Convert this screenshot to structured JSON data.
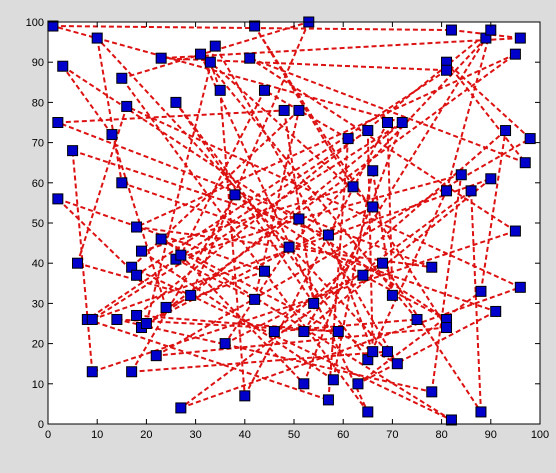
{
  "chart_data": {
    "type": "scatter",
    "title": "",
    "xlabel": "",
    "ylabel": "",
    "xlim": [
      0,
      100
    ],
    "ylim": [
      0,
      100
    ],
    "xticks": [
      "0",
      "10",
      "20",
      "30",
      "40",
      "50",
      "60",
      "70",
      "80",
      "90",
      "100"
    ],
    "yticks": [
      "0",
      "10",
      "20",
      "30",
      "40",
      "50",
      "60",
      "70",
      "80",
      "90",
      "100"
    ],
    "grid": false,
    "colors": {
      "marker_fill": "#0000cc",
      "marker_edge": "#000000",
      "route_line": "#dd1111",
      "figure_background": "#dcdcdc",
      "axes_background": "#ffffff"
    },
    "points": [
      [
        1,
        99
      ],
      [
        10,
        96
      ],
      [
        23,
        91
      ],
      [
        31,
        92
      ],
      [
        33,
        90
      ],
      [
        34,
        94
      ],
      [
        42,
        99
      ],
      [
        53,
        100
      ],
      [
        41,
        91
      ],
      [
        82,
        98
      ],
      [
        89,
        96
      ],
      [
        90,
        98
      ],
      [
        95,
        92
      ],
      [
        96,
        96
      ],
      [
        3,
        89
      ],
      [
        15,
        86
      ],
      [
        35,
        83
      ],
      [
        44,
        83
      ],
      [
        81,
        90
      ],
      [
        81,
        88
      ],
      [
        16,
        79
      ],
      [
        26,
        80
      ],
      [
        48,
        78
      ],
      [
        51,
        78
      ],
      [
        2,
        75
      ],
      [
        13,
        72
      ],
      [
        65,
        73
      ],
      [
        69,
        75
      ],
      [
        72,
        75
      ],
      [
        93,
        73
      ],
      [
        98,
        71
      ],
      [
        5,
        68
      ],
      [
        61,
        71
      ],
      [
        66,
        63
      ],
      [
        84,
        62
      ],
      [
        15,
        60
      ],
      [
        38,
        57
      ],
      [
        62,
        59
      ],
      [
        81,
        58
      ],
      [
        86,
        58
      ],
      [
        2,
        56
      ],
      [
        66,
        54
      ],
      [
        90,
        61
      ],
      [
        97,
        65
      ],
      [
        18,
        49
      ],
      [
        23,
        46
      ],
      [
        57,
        47
      ],
      [
        19,
        43
      ],
      [
        51,
        51
      ],
      [
        49,
        44
      ],
      [
        95,
        48
      ],
      [
        6,
        40
      ],
      [
        17,
        39
      ],
      [
        26,
        41
      ],
      [
        27,
        42
      ],
      [
        18,
        37
      ],
      [
        44,
        38
      ],
      [
        64,
        37
      ],
      [
        68,
        40
      ],
      [
        78,
        39
      ],
      [
        8,
        26
      ],
      [
        9,
        26
      ],
      [
        14,
        26
      ],
      [
        18,
        27
      ],
      [
        19,
        24
      ],
      [
        20,
        25
      ],
      [
        24,
        29
      ],
      [
        29,
        32
      ],
      [
        42,
        31
      ],
      [
        54,
        30
      ],
      [
        70,
        32
      ],
      [
        88,
        33
      ],
      [
        96,
        34
      ],
      [
        36,
        20
      ],
      [
        46,
        23
      ],
      [
        52,
        23
      ],
      [
        59,
        23
      ],
      [
        75,
        26
      ],
      [
        81,
        26
      ],
      [
        81,
        24
      ],
      [
        91,
        28
      ],
      [
        9,
        13
      ],
      [
        17,
        13
      ],
      [
        22,
        17
      ],
      [
        65,
        16
      ],
      [
        66,
        18
      ],
      [
        69,
        18
      ],
      [
        71,
        15
      ],
      [
        40,
        7
      ],
      [
        52,
        10
      ],
      [
        58,
        11
      ],
      [
        63,
        10
      ],
      [
        57,
        6
      ],
      [
        65,
        3
      ],
      [
        78,
        8
      ],
      [
        27,
        4
      ],
      [
        82,
        1
      ],
      [
        88,
        3
      ]
    ],
    "route": [
      0,
      9,
      13,
      2,
      19,
      55,
      40,
      56,
      66,
      25,
      14,
      78,
      57,
      36,
      82,
      86,
      1,
      35,
      80,
      91,
      71,
      29,
      74,
      77,
      3,
      93,
      15,
      7,
      67,
      64,
      12,
      44,
      59,
      24,
      22,
      69,
      21,
      84,
      38,
      11,
      63,
      76,
      62,
      94,
      34,
      48,
      53,
      68,
      23,
      52,
      96,
      45,
      87,
      5,
      65,
      41,
      4,
      16,
      88,
      27,
      70,
      33,
      90,
      47,
      37,
      6,
      79,
      83,
      30,
      18,
      43,
      8,
      50,
      81,
      31,
      46,
      85,
      26,
      60,
      92,
      32,
      17,
      54,
      89,
      28,
      61,
      42,
      75,
      10,
      49,
      73,
      58,
      97,
      39,
      95,
      72,
      20,
      51,
      67,
      28,
      0
    ]
  }
}
